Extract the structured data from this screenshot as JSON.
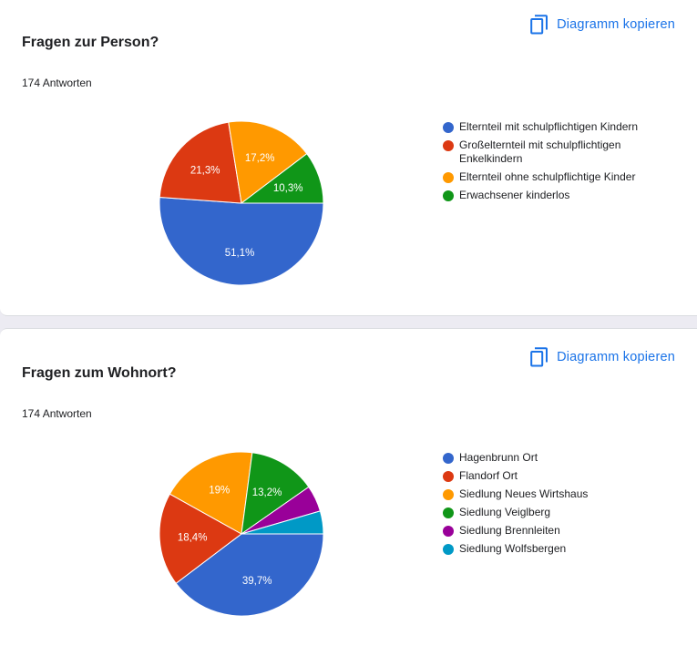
{
  "copy_label": "Diagramm kopieren",
  "icons": {
    "copy": "copy-icon"
  },
  "cards": [
    {
      "title": "Fragen zur Person?",
      "responses": "174 Antworten",
      "chart_data": {
        "type": "pie",
        "title": "Fragen zur Person?",
        "slices": [
          {
            "label": "Elternteil mit schulpflichtigen Kindern",
            "value": 51.1,
            "display": "51,1%",
            "color": "#3366cc"
          },
          {
            "label": "Großelternteil mit schulpflichtigen Enkelkindern",
            "value": 21.3,
            "display": "21,3%",
            "color": "#dc3912"
          },
          {
            "label": "Elternteil ohne schulpflichtige Kinder",
            "value": 17.2,
            "display": "17,2%",
            "color": "#ff9900"
          },
          {
            "label": "Erwachsener kinderlos",
            "value": 10.3,
            "display": "10,3%",
            "color": "#109618"
          }
        ],
        "legend_position": "right"
      }
    },
    {
      "title": "Fragen zum Wohnort?",
      "responses": "174 Antworten",
      "chart_data": {
        "type": "pie",
        "title": "Fragen zum Wohnort?",
        "slices": [
          {
            "label": "Hagenbrunn Ort",
            "value": 39.7,
            "display": "39,7%",
            "color": "#3366cc"
          },
          {
            "label": "Flandorf Ort",
            "value": 18.4,
            "display": "18,4%",
            "color": "#dc3912"
          },
          {
            "label": "Siedlung Neues Wirtshaus",
            "value": 19.0,
            "display": "19%",
            "color": "#ff9900"
          },
          {
            "label": "Siedlung Veiglberg",
            "value": 13.2,
            "display": "13,2%",
            "color": "#109618"
          },
          {
            "label": "Siedlung Brennleiten",
            "value": 5.2,
            "display": "",
            "color": "#990099"
          },
          {
            "label": "Siedlung Wolfsbergen",
            "value": 4.5,
            "display": "",
            "color": "#0099c6"
          }
        ],
        "legend_position": "right"
      }
    }
  ]
}
